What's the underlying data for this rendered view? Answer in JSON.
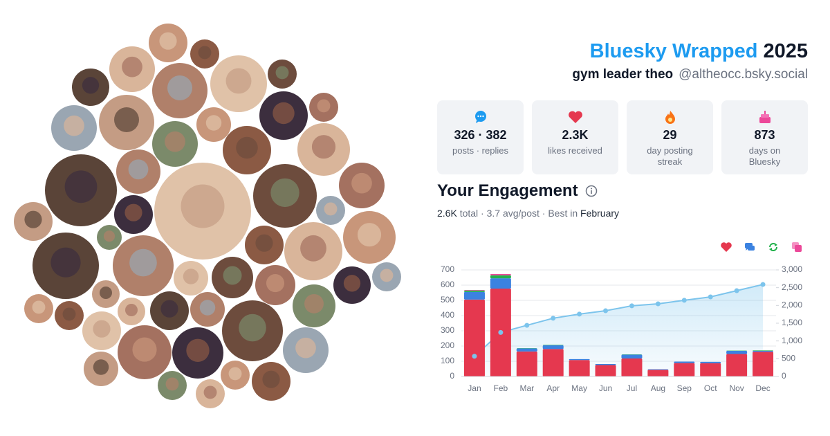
{
  "header": {
    "title": "Bluesky Wrapped",
    "year": "2025",
    "name": "gym leader theo",
    "handle": "@altheocc.bsky.social"
  },
  "stats": [
    {
      "value": "326 · 382",
      "label": "posts · replies"
    },
    {
      "value": "2.3K",
      "label": "likes received"
    },
    {
      "value": "29",
      "label": "day posting streak"
    },
    {
      "value": "873",
      "label": "days on Bluesky"
    }
  ],
  "engagement": {
    "heading": "Your Engagement",
    "total": "2.6K",
    "summary": "total · 3.7 avg/post · Best in",
    "best": "February"
  },
  "chart_data": {
    "type": "bar",
    "stacked": true,
    "grid": true,
    "categories": [
      "Jan",
      "Feb",
      "Mar",
      "Apr",
      "May",
      "Jun",
      "Jul",
      "Aug",
      "Sep",
      "Oct",
      "Nov",
      "Dec"
    ],
    "series": [
      {
        "color": "#e5384f",
        "values": [
          505,
          577,
          164,
          180,
          108,
          75,
          118,
          44,
          88,
          87,
          148,
          162
        ]
      },
      {
        "color": "#3b82e0",
        "values": [
          50,
          68,
          20,
          25,
          6,
          7,
          25,
          4,
          10,
          9,
          20,
          6
        ]
      },
      {
        "color": "#22b14c",
        "values": [
          10,
          19,
          2,
          3,
          0,
          0,
          2,
          0,
          0,
          0,
          2,
          3
        ]
      },
      {
        "color": "#ec4899",
        "values": [
          3,
          9,
          0,
          0,
          0,
          0,
          0,
          0,
          0,
          0,
          0,
          0
        ]
      },
      {
        "type": "area",
        "axis": "y2",
        "color": "#7cc4ec",
        "values": [
          570,
          1240,
          1440,
          1640,
          1755,
          1850,
          1990,
          2045,
          2145,
          2240,
          2415,
          2590
        ]
      }
    ],
    "ylim": [
      0,
      700
    ],
    "yticks": [
      0,
      100,
      200,
      300,
      400,
      500,
      600,
      700
    ],
    "y2lim": [
      0,
      3000
    ],
    "y2ticks": [
      0,
      500,
      {
        "value": 1000,
        "label": "1,000"
      },
      {
        "value": 1500,
        "label": "1,500"
      },
      {
        "value": 2000,
        "label": "2,000"
      },
      {
        "value": 2500,
        "label": "2,500"
      },
      {
        "value": 3000,
        "label": "3,000"
      }
    ]
  }
}
